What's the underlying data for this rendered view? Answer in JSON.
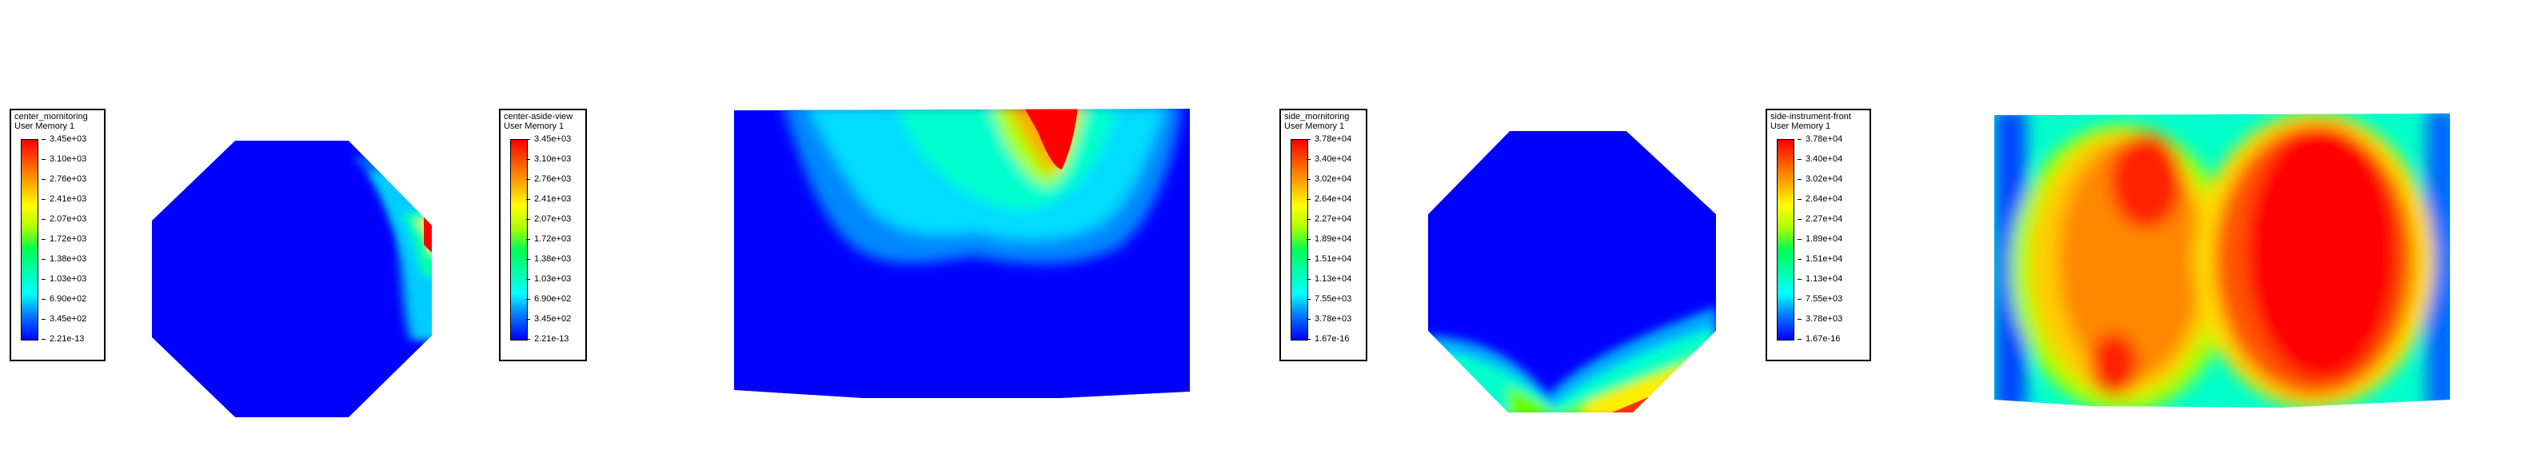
{
  "legends": [
    {
      "title": "center_mornitoring",
      "subtitle": "User Memory 1",
      "ticks": [
        "3.45e+03",
        "3.10e+03",
        "2.76e+03",
        "2.41e+03",
        "2.07e+03",
        "1.72e+03",
        "1.38e+03",
        "1.03e+03",
        "6.90e+02",
        "3.45e+02",
        "2.21e-13"
      ]
    },
    {
      "title": "center-aside-view",
      "subtitle": "User Memory 1",
      "ticks": [
        "3.45e+03",
        "3.10e+03",
        "2.76e+03",
        "2.41e+03",
        "2.07e+03",
        "1.72e+03",
        "1.38e+03",
        "1.03e+03",
        "6.90e+02",
        "3.45e+02",
        "2.21e-13"
      ]
    },
    {
      "title": "side_mornitoring",
      "subtitle": "User Memory 1",
      "ticks": [
        "3.78e+04",
        "3.40e+04",
        "3.02e+04",
        "2.64e+04",
        "2.27e+04",
        "1.89e+04",
        "1.51e+04",
        "1.13e+04",
        "7.55e+03",
        "3.78e+03",
        "1.67e-16"
      ]
    },
    {
      "title": "side-instrument-front",
      "subtitle": "User Memory 1",
      "ticks": [
        "3.78e+04",
        "3.40e+04",
        "3.02e+04",
        "2.64e+04",
        "2.27e+04",
        "1.89e+04",
        "1.51e+04",
        "1.13e+04",
        "7.55e+03",
        "3.78e+03",
        "1.67e-16"
      ]
    }
  ],
  "colors": {
    "low": "#0000ff",
    "high": "#ff0000"
  }
}
